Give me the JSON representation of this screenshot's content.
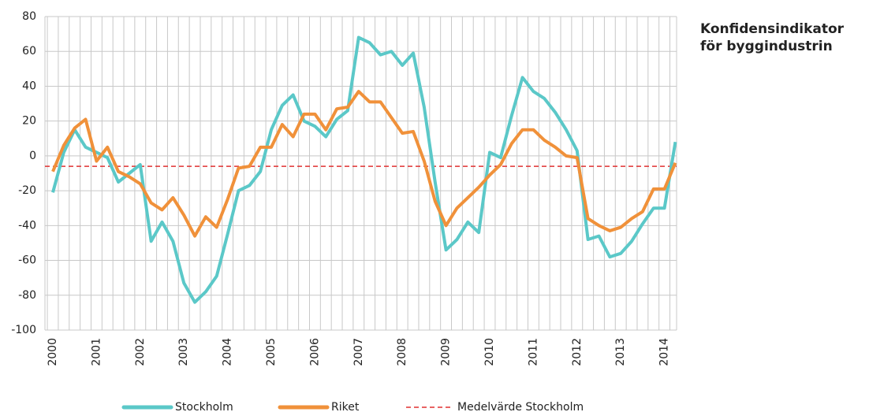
{
  "chart_data": {
    "type": "line",
    "title_lines": [
      "Konfidensindikator",
      "för byggindustrin"
    ],
    "categories": [
      "2000",
      null,
      null,
      null,
      "2001",
      null,
      null,
      null,
      "2002",
      null,
      null,
      null,
      "2003",
      null,
      null,
      null,
      "2004",
      null,
      null,
      null,
      "2005",
      null,
      null,
      null,
      "2006",
      null,
      null,
      null,
      "2007",
      null,
      null,
      null,
      "2008",
      null,
      null,
      null,
      "2009",
      null,
      null,
      null,
      "2010",
      null,
      null,
      null,
      "2011",
      null,
      null,
      null,
      "2012",
      null,
      null,
      null,
      "2013",
      null,
      null,
      null,
      "2014",
      null
    ],
    "series": [
      {
        "name": "Stockholm",
        "color": "#5bc8c8",
        "values": [
          -21,
          2,
          15,
          5,
          2,
          -1,
          -15,
          -10,
          -5,
          -49,
          -38,
          -49,
          -73,
          -84,
          -78,
          -69,
          -45,
          -20,
          -17,
          -9,
          15,
          29,
          35,
          20,
          17,
          11,
          21,
          26,
          68,
          65,
          58,
          60,
          52,
          59,
          28,
          -15,
          -54,
          -48,
          -38,
          -44,
          2,
          -1,
          23,
          45,
          37,
          33,
          25,
          15,
          3,
          -48,
          -46,
          -58,
          -56,
          -49,
          -39,
          -30,
          -30,
          8
        ]
      },
      {
        "name": "Riket",
        "color": "#f0913a",
        "values": [
          -9,
          6,
          16,
          21,
          -3,
          5,
          -9,
          -12,
          -16,
          -27,
          -31,
          -24,
          -34,
          -46,
          -35,
          -41,
          -25,
          -7,
          -6,
          5,
          5,
          18,
          11,
          24,
          24,
          15,
          27,
          28,
          37,
          31,
          31,
          22,
          13,
          14,
          -3,
          -26,
          -40,
          -30,
          -24,
          -18,
          -11,
          -5,
          7,
          15,
          15,
          9,
          5,
          0,
          -1,
          -36,
          -40,
          -43,
          -41,
          -36,
          -32,
          -19,
          -19,
          -4
        ]
      }
    ],
    "reference_line": {
      "name": "Medelvärde Stockholm",
      "value": -6,
      "color": "#e03030"
    },
    "ylim": [
      -100,
      80
    ],
    "yticks": [
      -100,
      -80,
      -60,
      -40,
      -20,
      0,
      20,
      40,
      60,
      80
    ],
    "grid": true
  }
}
